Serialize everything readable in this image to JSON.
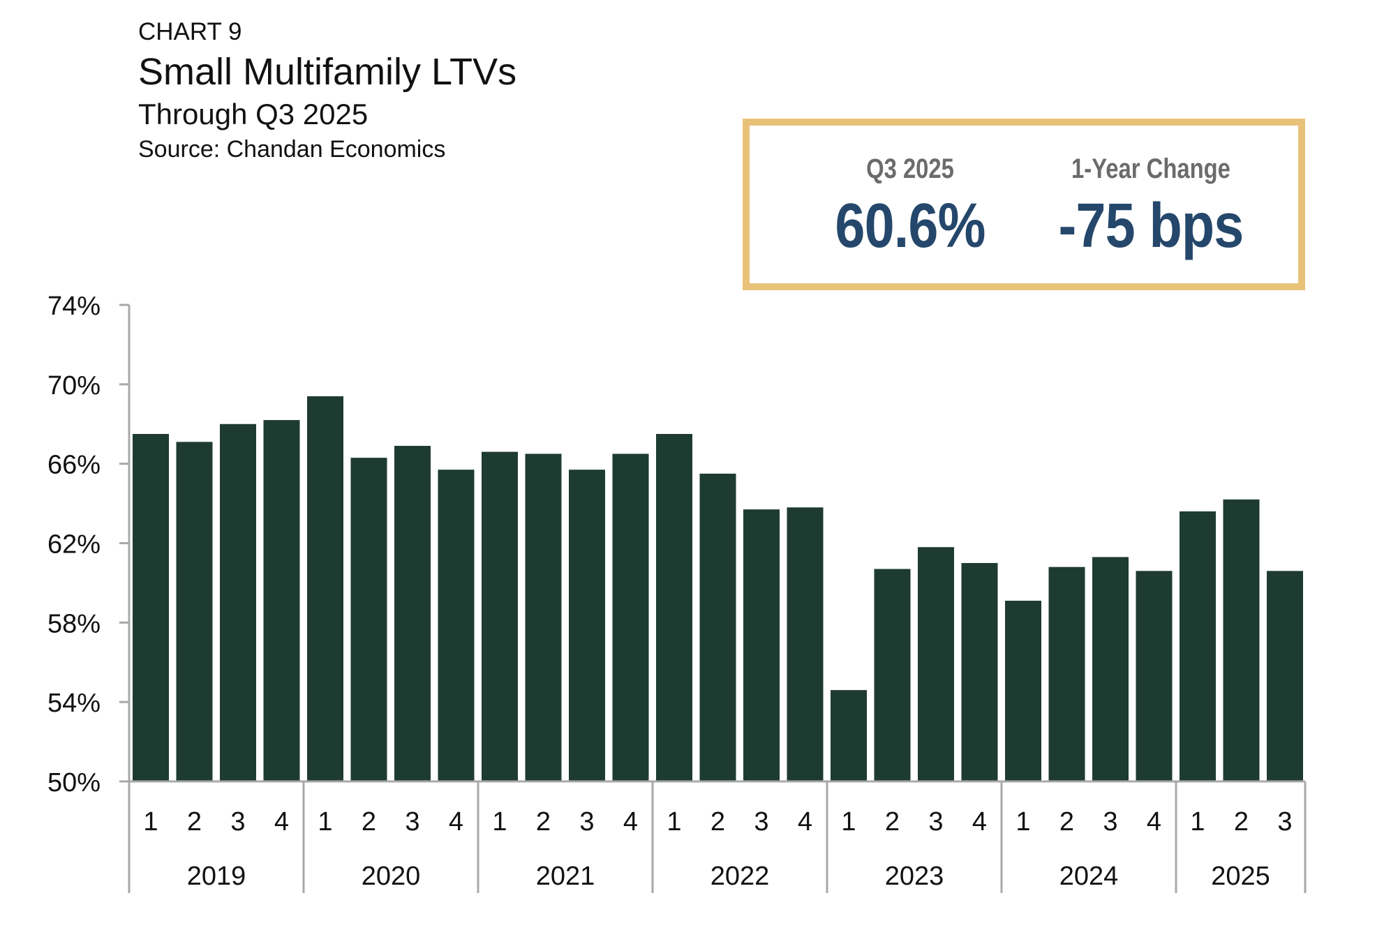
{
  "header": {
    "eyebrow": "CHART 9",
    "title": "Small Multifamily LTVs",
    "subtitle": "Through Q3 2025",
    "source": "Source: Chandan Economics"
  },
  "kpis": [
    {
      "label": "Q3 2025",
      "value": "60.6%"
    },
    {
      "label": "1-Year Change",
      "value": "-75 bps"
    }
  ],
  "colors": {
    "bar": "#1e3b32",
    "axis": "#a8a8a8",
    "box_border": "#e9c27a",
    "kpi_value": "#25476b",
    "kpi_label": "#6b6b6b"
  },
  "chart_data": {
    "type": "bar",
    "title": "Small Multifamily LTVs",
    "xlabel": "",
    "ylabel": "",
    "ylim": [
      50,
      74
    ],
    "yticks": [
      "74%",
      "70%",
      "66%",
      "62%",
      "58%",
      "54%",
      "50%"
    ],
    "ytick_values": [
      74,
      70,
      66,
      62,
      58,
      54,
      50
    ],
    "categories": [
      "1",
      "2",
      "3",
      "4",
      "1",
      "2",
      "3",
      "4",
      "1",
      "2",
      "3",
      "4",
      "1",
      "2",
      "3",
      "4",
      "1",
      "2",
      "3",
      "4",
      "1",
      "2",
      "3",
      "4",
      "1",
      "2",
      "3"
    ],
    "groups": [
      {
        "year": "2019",
        "count": 4
      },
      {
        "year": "2020",
        "count": 4
      },
      {
        "year": "2021",
        "count": 4
      },
      {
        "year": "2022",
        "count": 4
      },
      {
        "year": "2023",
        "count": 4
      },
      {
        "year": "2024",
        "count": 4
      },
      {
        "year": "2025",
        "count": 3
      }
    ],
    "values": [
      67.5,
      67.1,
      68.0,
      68.2,
      69.4,
      66.3,
      66.9,
      65.7,
      66.6,
      66.5,
      65.7,
      66.5,
      67.5,
      65.5,
      63.7,
      63.8,
      54.6,
      60.7,
      61.8,
      61.0,
      59.1,
      60.8,
      61.3,
      60.6,
      63.6,
      64.2,
      60.6
    ]
  }
}
